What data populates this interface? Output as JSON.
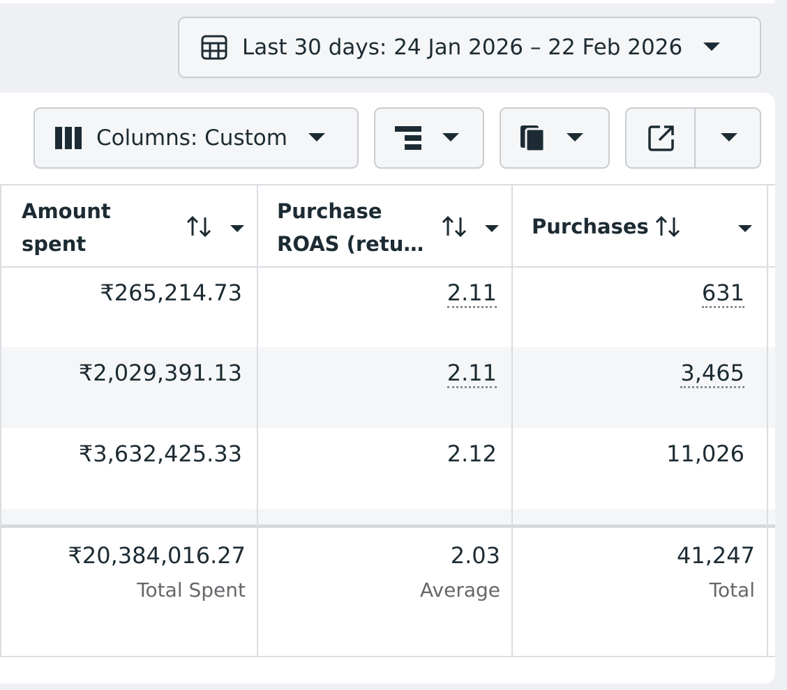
{
  "toolbar": {
    "date_range": "Last 30 days: 24 Jan 2026 – 22 Feb 2026",
    "columns_button": "Columns: Custom"
  },
  "table": {
    "headers": [
      "Amount spent",
      "Purchase ROAS (retu…",
      "Purchases"
    ],
    "rows": [
      [
        "₹265,214.73",
        "2.11",
        "631"
      ],
      [
        "₹2,029,391.13",
        "2.11",
        "3,465"
      ],
      [
        "₹3,632,425.33",
        "2.12",
        "11,026"
      ]
    ],
    "totals": [
      {
        "value": "₹20,384,016.27",
        "label": "Total Spent"
      },
      {
        "value": "2.03",
        "label": "Average"
      },
      {
        "value": "41,247",
        "label": "Total"
      }
    ]
  }
}
